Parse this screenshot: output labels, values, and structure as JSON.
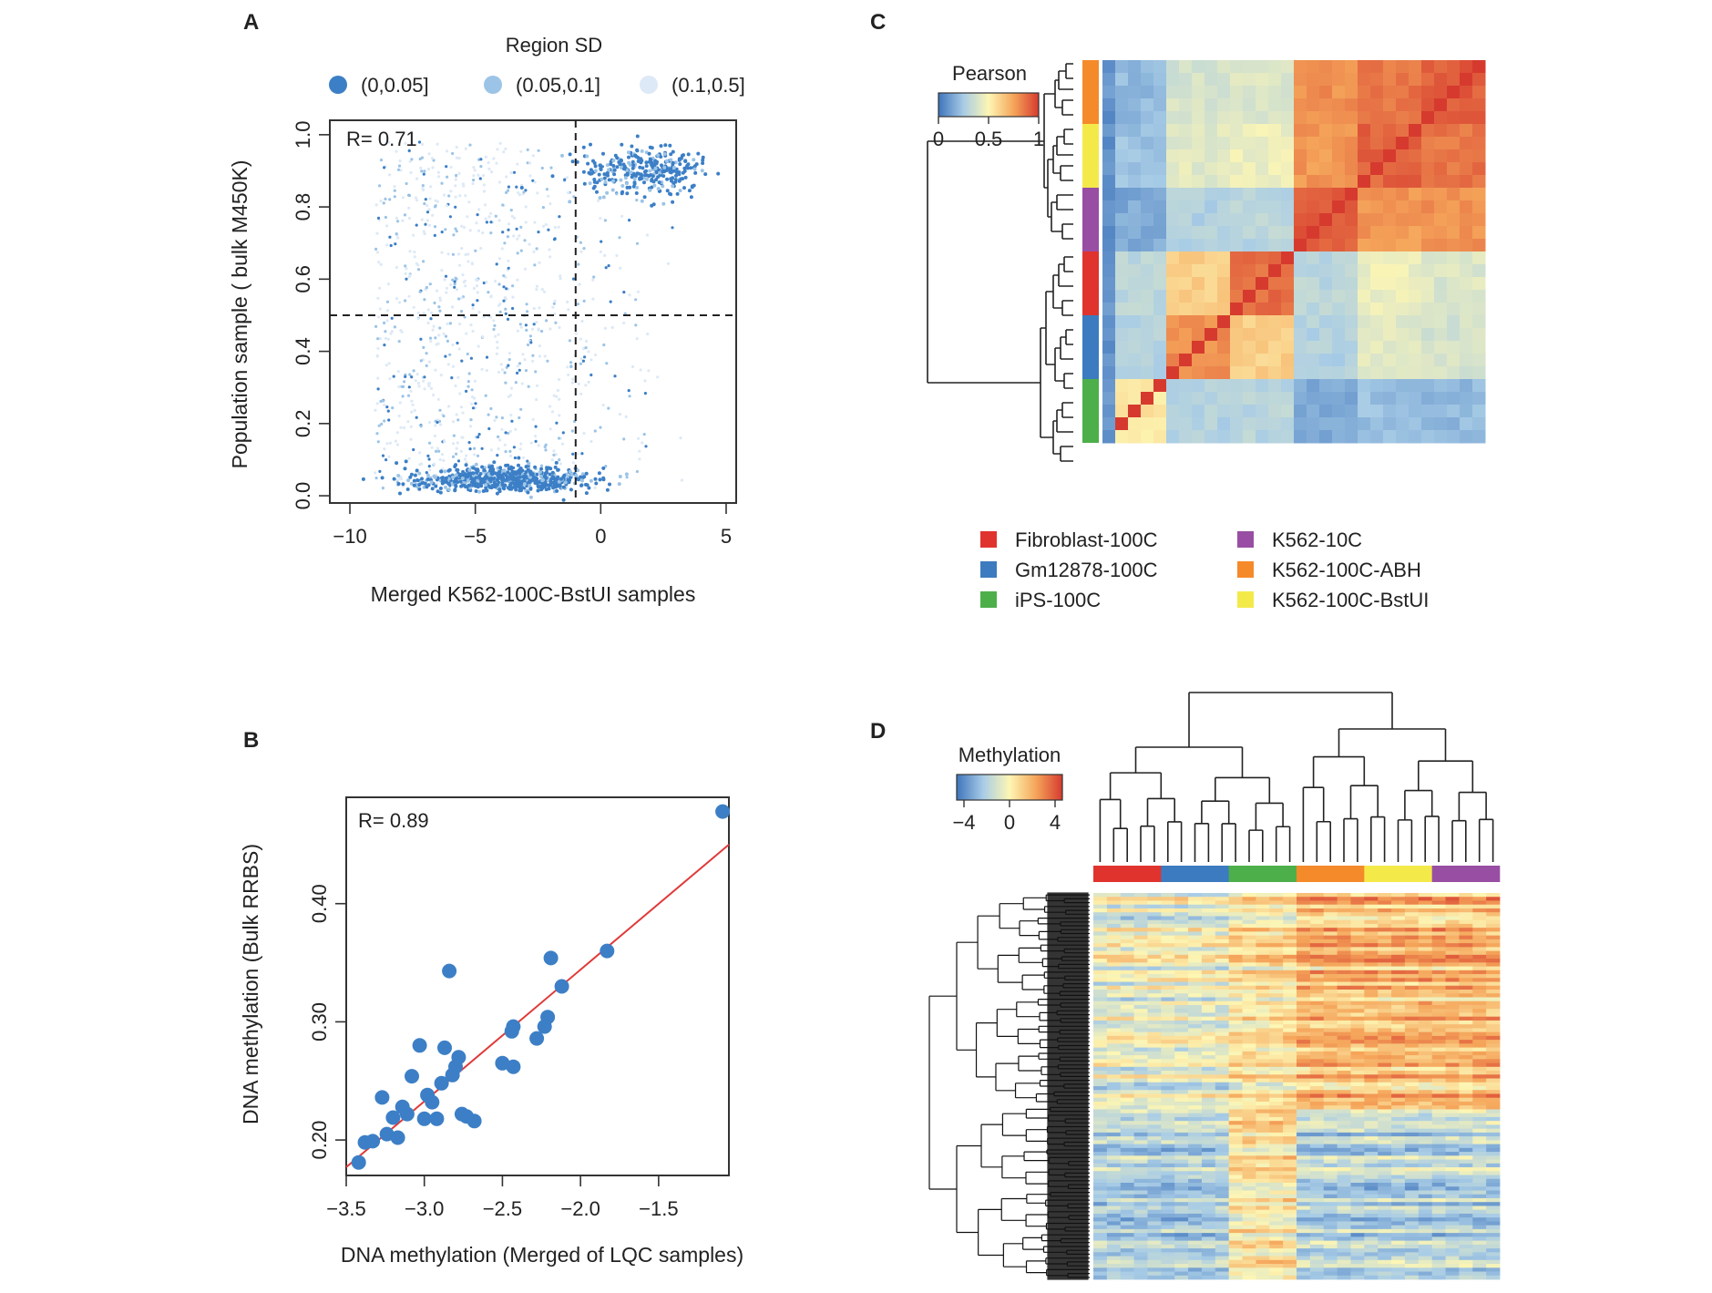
{
  "panels": {
    "A": "A",
    "B": "B",
    "C": "C",
    "D": "D"
  },
  "chart_data": [
    {
      "id": "A",
      "type": "scatter",
      "legend_title": "Region SD",
      "legend_position": "top",
      "legend": [
        {
          "label": "(0,0.05]",
          "color": "#3c7fc6"
        },
        {
          "label": "(0.05,0.1]",
          "color": "#9cc4e6"
        },
        {
          "label": "(0.1,0.5]",
          "color": "#dde9f6"
        }
      ],
      "annotation": "R= 0.71",
      "xlabel": "Merged K562-100C-BstUI samples",
      "ylabel": "Population sample ( bulk M450K)",
      "xlim": [
        -10.8,
        5.4
      ],
      "ylim": [
        -0.02,
        1.04
      ],
      "xticks": [
        -10,
        -5,
        0,
        5
      ],
      "xtick_labels": [
        "−10",
        "−5",
        "0",
        "5"
      ],
      "yticks": [
        0.0,
        0.2,
        0.4,
        0.6,
        0.8,
        1.0
      ],
      "ytick_labels": [
        "0.0",
        "0.2",
        "0.4",
        "0.6",
        "0.8",
        "1.0"
      ],
      "reference_lines": {
        "x": -1,
        "y": 0.5
      },
      "clusters": [
        {
          "name": "low",
          "x_mean": -3.8,
          "x_sd": 1.8,
          "y_mean": 0.045,
          "y_sd": 0.018,
          "count": 650,
          "sd_bin": 0
        },
        {
          "name": "high",
          "x_mean": 1.8,
          "x_sd": 1.3,
          "y_mean": 0.9,
          "y_sd": 0.035,
          "count": 320,
          "sd_bin": 0
        },
        {
          "name": "spread",
          "x_range": [
            -8,
            4.5
          ],
          "y_range": [
            0.02,
            0.98
          ],
          "count": 900,
          "sd_bin": "mixed"
        }
      ]
    },
    {
      "id": "B",
      "type": "scatter",
      "annotation": "R= 0.89",
      "xlabel": "DNA methylation (Merged of LQC samples)",
      "ylabel": "DNA methylation (Bulk RRBS)",
      "xlim": [
        -3.5,
        -1.05
      ],
      "ylim": [
        0.17,
        0.49
      ],
      "xticks": [
        -3.5,
        -3.0,
        -2.5,
        -2.0,
        -1.5
      ],
      "xtick_labels": [
        "−3.5",
        "−3.0",
        "−2.5",
        "−2.0",
        "−1.5"
      ],
      "yticks": [
        0.2,
        0.3,
        0.4
      ],
      "ytick_labels": [
        "0.20",
        "0.30",
        "0.40"
      ],
      "point_color": "#3c7fc6",
      "fit_color": "#e03a3a",
      "fit_line": {
        "x": [
          -3.5,
          -1.05
        ],
        "y": [
          0.177,
          0.45
        ]
      },
      "points": [
        {
          "x": -3.42,
          "y": 0.181
        },
        {
          "x": -3.38,
          "y": 0.198
        },
        {
          "x": -3.33,
          "y": 0.199
        },
        {
          "x": -3.27,
          "y": 0.236
        },
        {
          "x": -3.24,
          "y": 0.205
        },
        {
          "x": -3.2,
          "y": 0.219
        },
        {
          "x": -3.17,
          "y": 0.202
        },
        {
          "x": -3.14,
          "y": 0.228
        },
        {
          "x": -3.11,
          "y": 0.222
        },
        {
          "x": -3.08,
          "y": 0.254
        },
        {
          "x": -3.03,
          "y": 0.28
        },
        {
          "x": -3.0,
          "y": 0.218
        },
        {
          "x": -2.98,
          "y": 0.238
        },
        {
          "x": -2.95,
          "y": 0.232
        },
        {
          "x": -2.92,
          "y": 0.218
        },
        {
          "x": -2.89,
          "y": 0.248
        },
        {
          "x": -2.87,
          "y": 0.278
        },
        {
          "x": -2.84,
          "y": 0.343
        },
        {
          "x": -2.82,
          "y": 0.255
        },
        {
          "x": -2.8,
          "y": 0.262
        },
        {
          "x": -2.78,
          "y": 0.27
        },
        {
          "x": -2.76,
          "y": 0.222
        },
        {
          "x": -2.73,
          "y": 0.22
        },
        {
          "x": -2.68,
          "y": 0.216
        },
        {
          "x": -2.5,
          "y": 0.265
        },
        {
          "x": -2.44,
          "y": 0.292
        },
        {
          "x": -2.43,
          "y": 0.296
        },
        {
          "x": -2.43,
          "y": 0.262
        },
        {
          "x": -2.28,
          "y": 0.286
        },
        {
          "x": -2.23,
          "y": 0.296
        },
        {
          "x": -2.21,
          "y": 0.304
        },
        {
          "x": -2.19,
          "y": 0.354
        },
        {
          "x": -2.12,
          "y": 0.33
        },
        {
          "x": -1.83,
          "y": 0.36
        },
        {
          "x": -1.09,
          "y": 0.478
        }
      ]
    },
    {
      "id": "C",
      "type": "heatmap",
      "legend_title": "Pearson",
      "scale_ticks": [
        0,
        0.5,
        1
      ],
      "scale_tick_labels": [
        "0",
        "0.5",
        "1"
      ],
      "scale_colors": [
        "#3f74bc",
        "#fdf6b4",
        "#d63a2e"
      ],
      "n": 30,
      "groups_top_to_bottom": [
        "K562-100C-ABH",
        "K562-100C-BstUI",
        "K562-10C",
        "Fibroblast-100C",
        "Gm12878-100C",
        "iPS-100C"
      ],
      "group_sizes": [
        5,
        5,
        5,
        5,
        5,
        5
      ],
      "legend_position": "bottom",
      "legend": [
        {
          "label": "Fibroblast-100C",
          "color": "#e0332e"
        },
        {
          "label": "Gm12878-100C",
          "color": "#3c7bbf"
        },
        {
          "label": "iPS-100C",
          "color": "#4daf4a"
        },
        {
          "label": "K562-10C",
          "color": "#984ea3"
        },
        {
          "label": "K562-100C-ABH",
          "color": "#f58a2a"
        },
        {
          "label": "K562-100C-BstUI",
          "color": "#f3ea4a"
        }
      ]
    },
    {
      "id": "D",
      "type": "heatmap",
      "legend_title": "Methylation",
      "scale_ticks": [
        -4,
        0,
        4
      ],
      "scale_tick_labels": [
        "−4",
        "0",
        "4"
      ],
      "scale_colors": [
        "#3f74bc",
        "#fdf6b4",
        "#d63a2e"
      ],
      "column_groups": [
        "Fibroblast-100C",
        "Gm12878-100C",
        "iPS-100C",
        "K562-100C-ABH",
        "K562-100C-BstUI",
        "K562-10C"
      ],
      "columns_per_group": 5,
      "rows": 100
    }
  ]
}
